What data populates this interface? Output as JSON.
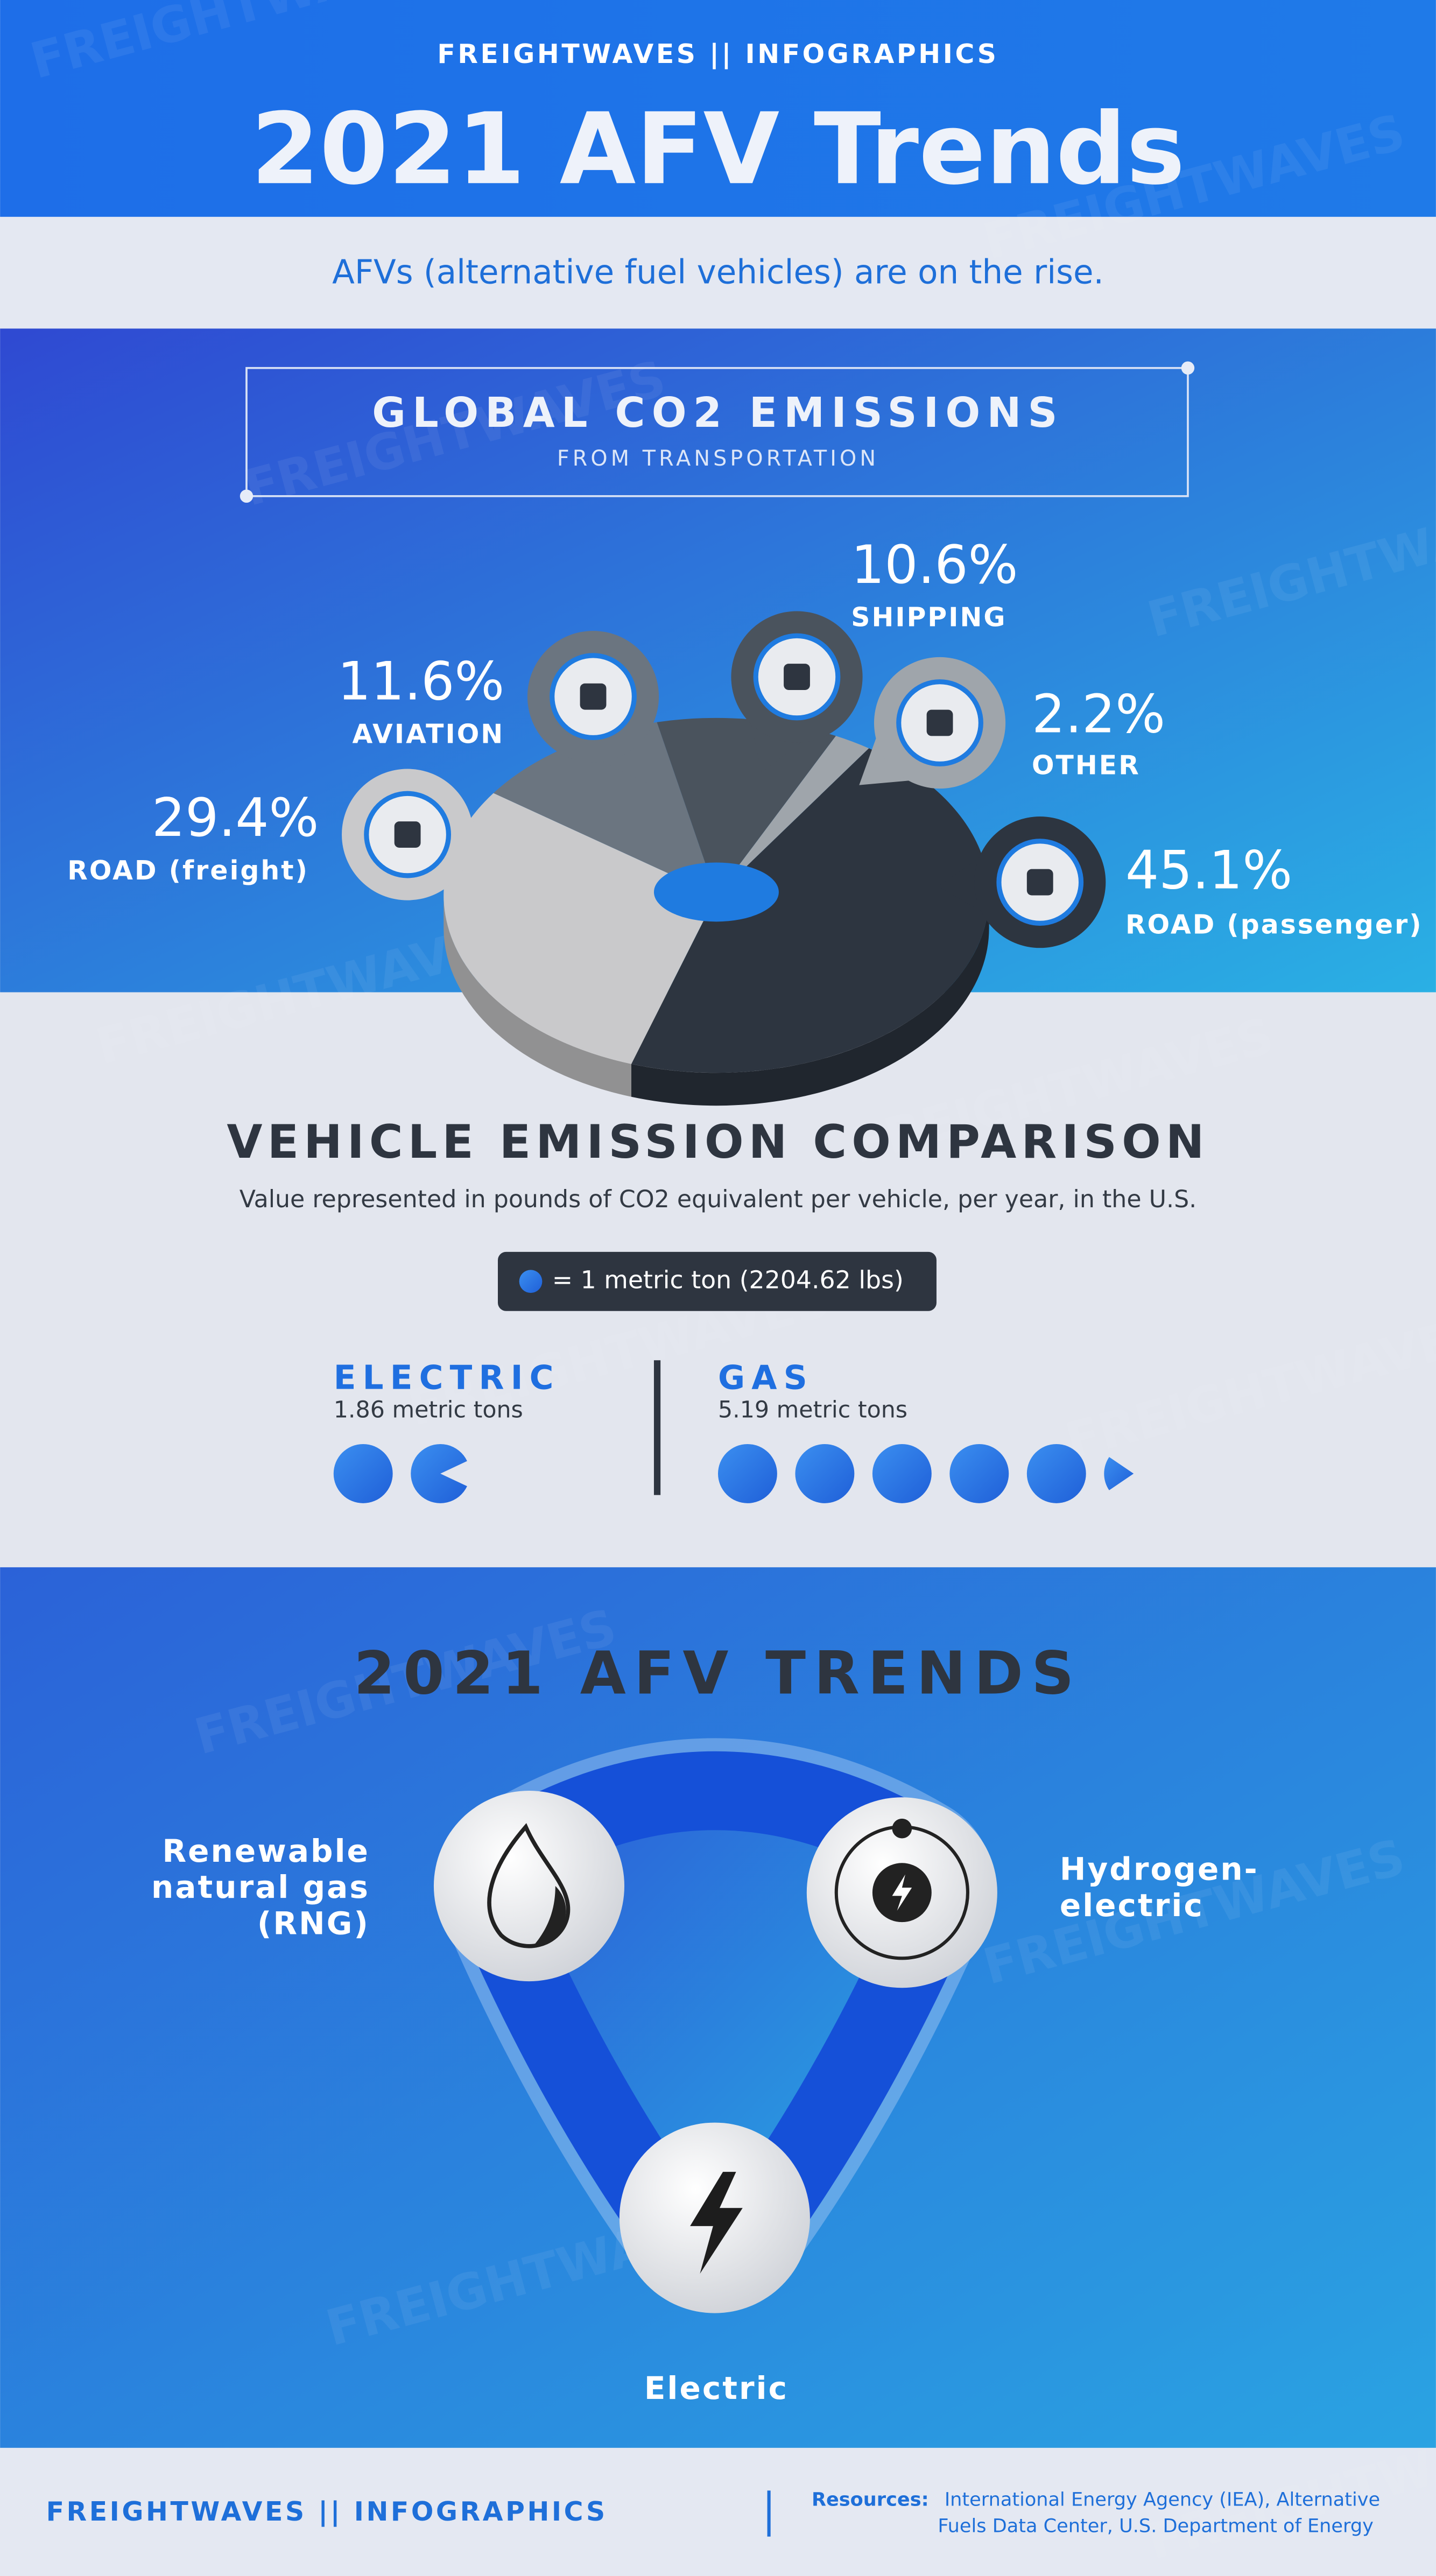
{
  "header": {
    "brand": "FREIGHTWAVES || INFOGRAPHICS",
    "title": "2021 AFV Trends",
    "subtitle": "AFVs (alternative fuel vehicles) are on the rise."
  },
  "watermark": "FREIGHTWAVES",
  "chart_data": [
    {
      "type": "pie",
      "title": "GLOBAL CO2 EMISSIONS",
      "subtitle": "FROM TRANSPORTATION",
      "categories": [
        "ROAD (passenger)",
        "ROAD (freight)",
        "AVIATION",
        "SHIPPING",
        "OTHER"
      ],
      "values": [
        45.1,
        29.4,
        11.6,
        10.6,
        2.2
      ],
      "value_labels": [
        "45.1%",
        "29.4%",
        "11.6%",
        "10.6%",
        "2.2%"
      ],
      "colors": [
        "#2d3540",
        "#c9c9cb",
        "#6b7580",
        "#4a535d",
        "#9fa5ab"
      ]
    },
    {
      "type": "pictograph",
      "title": "VEHICLE EMISSION COMPARISON",
      "subtitle": "Value represented in pounds of CO2 equivalent per vehicle, per year, in the U.S.",
      "legend": "= 1 metric ton (2204.62 lbs)",
      "categories": [
        "ELECTRIC",
        "GAS"
      ],
      "values": [
        1.86,
        5.19
      ],
      "value_labels": [
        "1.86 metric tons",
        "5.19 metric tons"
      ],
      "color": "#1f6fe0"
    }
  ],
  "trends": {
    "title": "2021 AFV TRENDS",
    "nodes": [
      {
        "label": [
          "Renewable",
          "natural gas",
          "(RNG)"
        ]
      },
      {
        "label": [
          "Hydrogen-",
          "electric"
        ]
      },
      {
        "label": [
          "Electric"
        ]
      }
    ]
  },
  "footer": {
    "brand": "FREIGHTWAVES || INFOGRAPHICS",
    "resources_label": "Resources:",
    "resources": [
      "International Energy Agency (IEA), Alternative",
      "Fuels Data Center, U.S. Department of Energy"
    ]
  }
}
